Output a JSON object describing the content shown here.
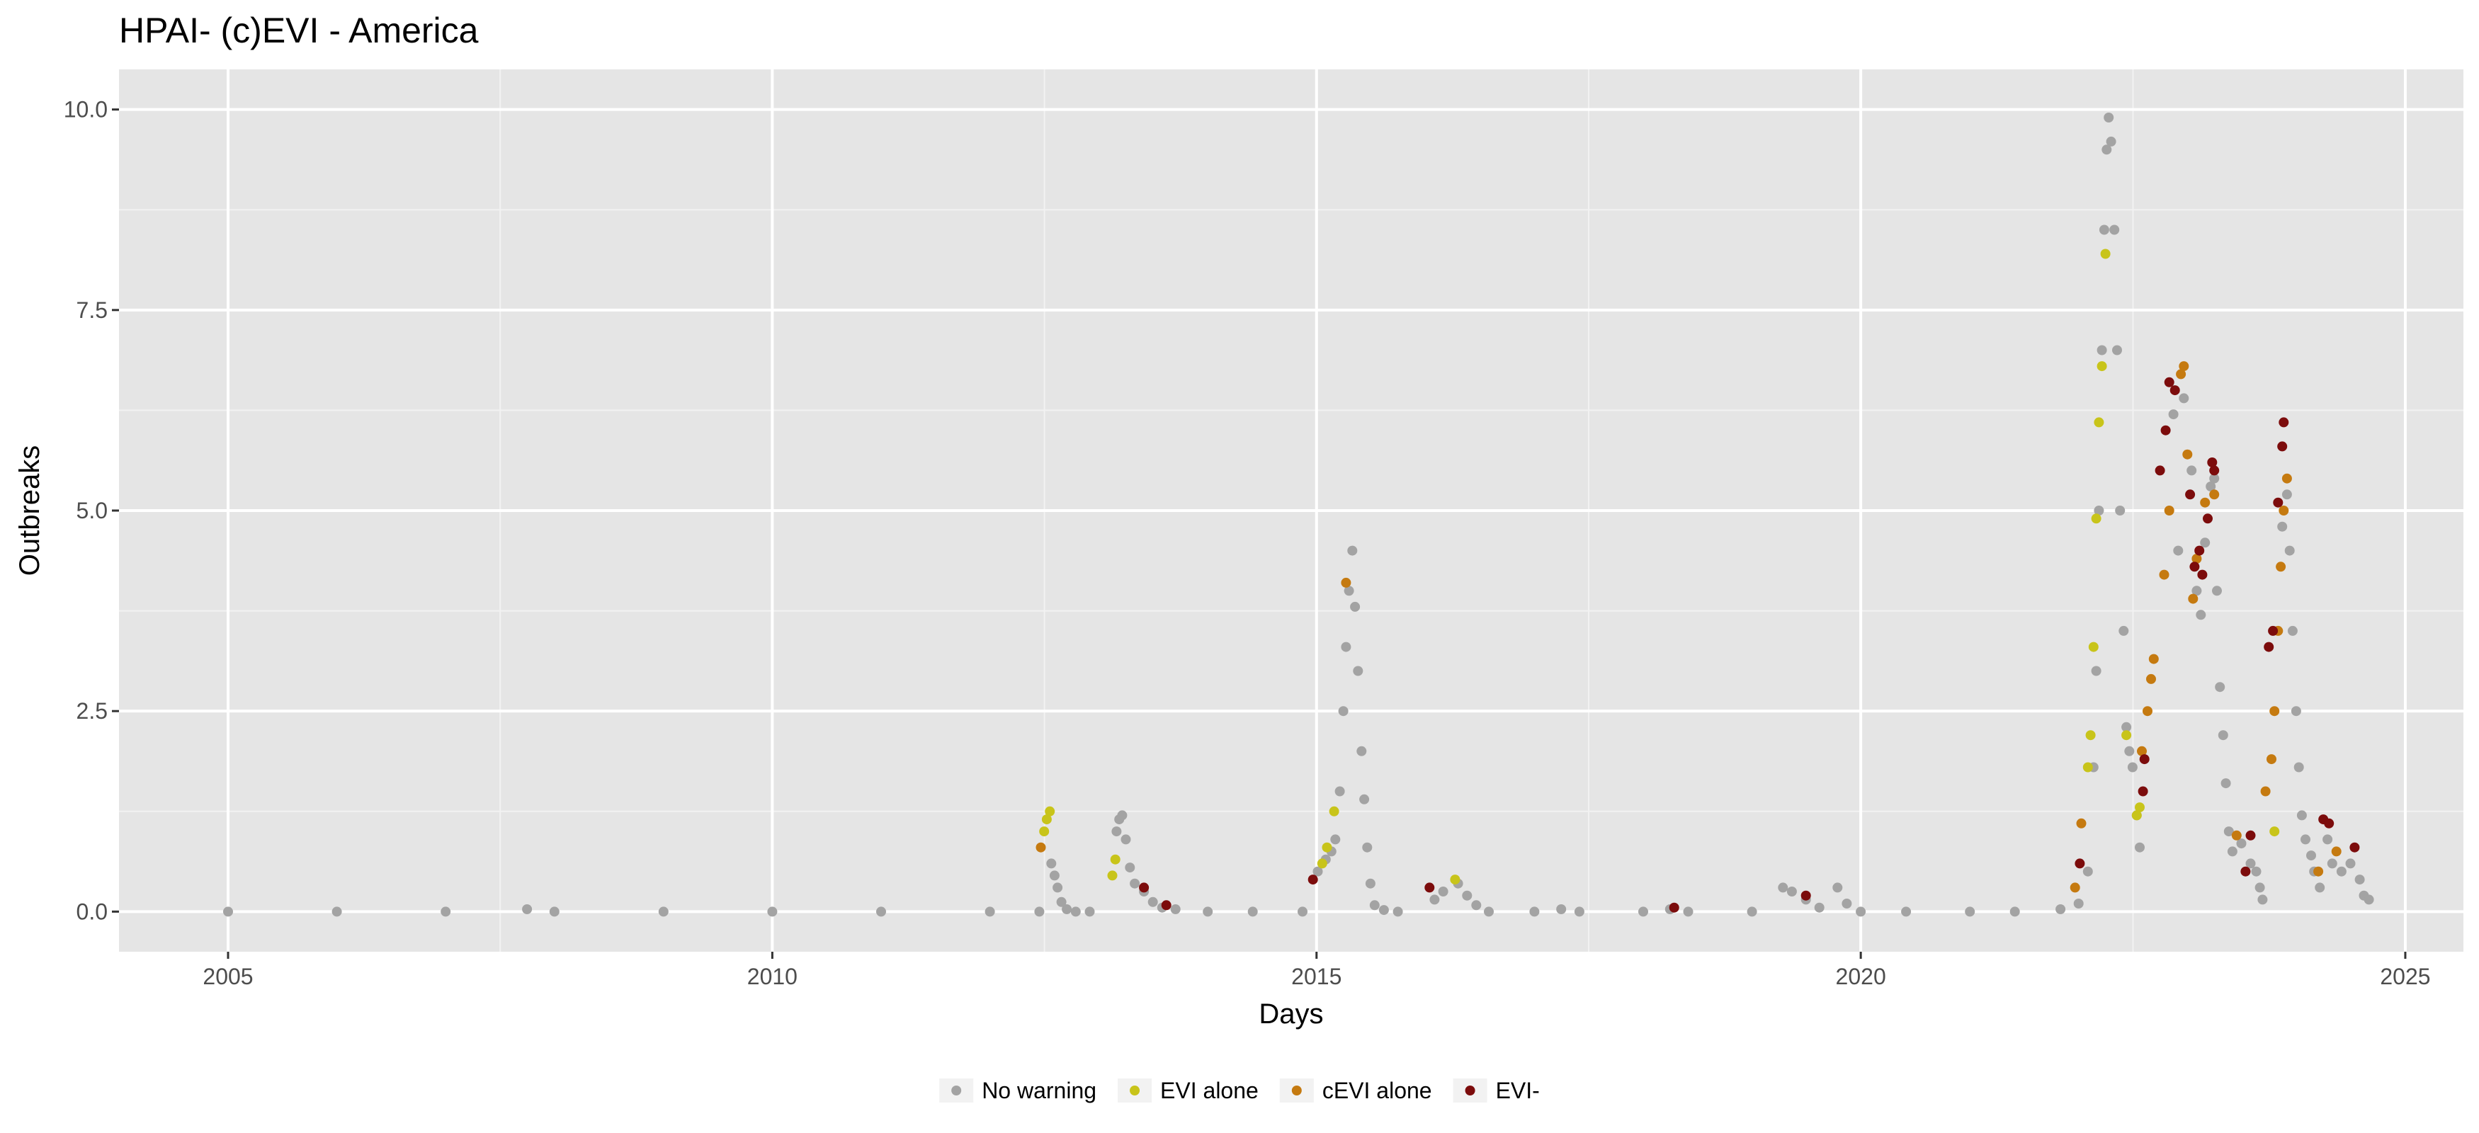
{
  "chart_data": {
    "type": "scatter",
    "title": "HPAI- (c)EVI - America",
    "xlabel": "Days",
    "ylabel": "Outbreaks",
    "x_scale": "date",
    "xlim": [
      "2004-01-01",
      "2025-07-15"
    ],
    "ylim": [
      -0.5,
      10.5
    ],
    "x_ticks": [
      {
        "value": "2005-01-01",
        "label": "2005"
      },
      {
        "value": "2010-01-01",
        "label": "2010"
      },
      {
        "value": "2015-01-01",
        "label": "2015"
      },
      {
        "value": "2020-01-01",
        "label": "2020"
      },
      {
        "value": "2025-01-01",
        "label": "2025"
      }
    ],
    "y_ticks": [
      {
        "value": 0,
        "label": "0.0"
      },
      {
        "value": 2.5,
        "label": "2.5"
      },
      {
        "value": 5,
        "label": "5.0"
      },
      {
        "value": 7.5,
        "label": "7.5"
      },
      {
        "value": 10,
        "label": "10.0"
      }
    ],
    "grid": true,
    "legend_position": "bottom",
    "background": "#e5e5e5",
    "series": [
      {
        "name": "No warning",
        "color": "#a3a3a3",
        "points": [
          [
            "2005-01-01",
            0
          ],
          [
            "2006-01-01",
            0
          ],
          [
            "2007-01-01",
            0
          ],
          [
            "2007-10-01",
            0.03
          ],
          [
            "2008-01-01",
            0
          ],
          [
            "2009-01-01",
            0
          ],
          [
            "2010-01-01",
            0
          ],
          [
            "2011-01-01",
            0
          ],
          [
            "2012-01-01",
            0
          ],
          [
            "2012-06-15",
            0
          ],
          [
            "2012-07-25",
            0.6
          ],
          [
            "2012-08-05",
            0.45
          ],
          [
            "2012-08-15",
            0.3
          ],
          [
            "2012-08-28",
            0.12
          ],
          [
            "2012-09-15",
            0.03
          ],
          [
            "2012-10-15",
            0
          ],
          [
            "2012-12-01",
            0
          ],
          [
            "2013-03-01",
            1.0
          ],
          [
            "2013-03-10",
            1.15
          ],
          [
            "2013-03-20",
            1.2
          ],
          [
            "2013-04-01",
            0.9
          ],
          [
            "2013-04-15",
            0.55
          ],
          [
            "2013-05-01",
            0.35
          ],
          [
            "2013-06-01",
            0.25
          ],
          [
            "2013-07-01",
            0.12
          ],
          [
            "2013-08-01",
            0.05
          ],
          [
            "2013-09-15",
            0.03
          ],
          [
            "2014-01-01",
            0
          ],
          [
            "2014-06-01",
            0
          ],
          [
            "2014-11-15",
            0
          ],
          [
            "2015-01-05",
            0.5
          ],
          [
            "2015-02-01",
            0.65
          ],
          [
            "2015-02-20",
            0.75
          ],
          [
            "2015-03-05",
            0.9
          ],
          [
            "2015-03-20",
            1.5
          ],
          [
            "2015-04-01",
            2.5
          ],
          [
            "2015-04-10",
            3.3
          ],
          [
            "2015-04-20",
            4.0
          ],
          [
            "2015-05-01",
            4.5
          ],
          [
            "2015-05-10",
            3.8
          ],
          [
            "2015-05-20",
            3.0
          ],
          [
            "2015-06-01",
            2.0
          ],
          [
            "2015-06-10",
            1.4
          ],
          [
            "2015-06-20",
            0.8
          ],
          [
            "2015-07-01",
            0.35
          ],
          [
            "2015-07-15",
            0.08
          ],
          [
            "2015-08-15",
            0.02
          ],
          [
            "2015-10-01",
            0
          ],
          [
            "2016-02-01",
            0.15
          ],
          [
            "2016-03-01",
            0.25
          ],
          [
            "2016-04-20",
            0.35
          ],
          [
            "2016-05-20",
            0.2
          ],
          [
            "2016-06-20",
            0.08
          ],
          [
            "2016-08-01",
            0
          ],
          [
            "2017-01-01",
            0
          ],
          [
            "2017-04-01",
            0.03
          ],
          [
            "2017-06-01",
            0
          ],
          [
            "2018-01-01",
            0
          ],
          [
            "2018-04-01",
            0.03
          ],
          [
            "2018-06-01",
            0
          ],
          [
            "2019-01-01",
            0
          ],
          [
            "2019-04-15",
            0.3
          ],
          [
            "2019-05-15",
            0.25
          ],
          [
            "2019-07-01",
            0.15
          ],
          [
            "2019-08-15",
            0.05
          ],
          [
            "2019-10-15",
            0.3
          ],
          [
            "2019-11-15",
            0.1
          ],
          [
            "2020-01-01",
            0
          ],
          [
            "2020-06-01",
            0
          ],
          [
            "2021-01-01",
            0
          ],
          [
            "2021-06-01",
            0
          ],
          [
            "2021-11-01",
            0.03
          ],
          [
            "2022-01-01",
            0.1
          ],
          [
            "2022-02-01",
            0.5
          ],
          [
            "2022-02-20",
            1.8
          ],
          [
            "2022-03-01",
            3.0
          ],
          [
            "2022-03-10",
            5.0
          ],
          [
            "2022-03-20",
            7.0
          ],
          [
            "2022-03-28",
            8.5
          ],
          [
            "2022-04-05",
            9.5
          ],
          [
            "2022-04-12",
            9.9
          ],
          [
            "2022-04-20",
            9.6
          ],
          [
            "2022-05-01",
            8.5
          ],
          [
            "2022-05-10",
            7.0
          ],
          [
            "2022-05-20",
            5.0
          ],
          [
            "2022-06-01",
            3.5
          ],
          [
            "2022-06-10",
            2.3
          ],
          [
            "2022-06-20",
            2.0
          ],
          [
            "2022-07-01",
            1.8
          ],
          [
            "2022-07-15",
            1.2
          ],
          [
            "2022-07-25",
            0.8
          ],
          [
            "2022-11-15",
            6.2
          ],
          [
            "2022-12-01",
            4.5
          ],
          [
            "2022-12-20",
            6.4
          ],
          [
            "2023-01-15",
            5.5
          ],
          [
            "2023-02-01",
            4.0
          ],
          [
            "2023-02-15",
            3.7
          ],
          [
            "2023-03-01",
            4.6
          ],
          [
            "2023-03-20",
            5.3
          ],
          [
            "2023-04-01",
            5.4
          ],
          [
            "2023-04-10",
            4.0
          ],
          [
            "2023-04-20",
            2.8
          ],
          [
            "2023-05-01",
            2.2
          ],
          [
            "2023-05-10",
            1.6
          ],
          [
            "2023-05-20",
            1.0
          ],
          [
            "2023-06-01",
            0.75
          ],
          [
            "2023-07-01",
            0.85
          ],
          [
            "2023-08-01",
            0.6
          ],
          [
            "2023-08-20",
            0.5
          ],
          [
            "2023-09-01",
            0.3
          ],
          [
            "2023-09-10",
            0.15
          ],
          [
            "2023-11-15",
            4.8
          ],
          [
            "2023-12-01",
            5.2
          ],
          [
            "2023-12-10",
            4.5
          ],
          [
            "2023-12-20",
            3.5
          ],
          [
            "2024-01-01",
            2.5
          ],
          [
            "2024-01-10",
            1.8
          ],
          [
            "2024-01-20",
            1.2
          ],
          [
            "2024-02-01",
            0.9
          ],
          [
            "2024-02-20",
            0.7
          ],
          [
            "2024-03-01",
            0.5
          ],
          [
            "2024-03-20",
            0.3
          ],
          [
            "2024-04-15",
            0.9
          ],
          [
            "2024-05-01",
            0.6
          ],
          [
            "2024-06-01",
            0.5
          ],
          [
            "2024-07-01",
            0.6
          ],
          [
            "2024-08-01",
            0.4
          ],
          [
            "2024-08-15",
            0.2
          ],
          [
            "2024-09-01",
            0.15
          ]
        ]
      },
      {
        "name": "EVI alone",
        "color": "#c8c41a",
        "points": [
          [
            "2012-07-01",
            1.0
          ],
          [
            "2012-07-10",
            1.15
          ],
          [
            "2012-07-20",
            1.25
          ],
          [
            "2013-02-15",
            0.45
          ],
          [
            "2013-02-25",
            0.65
          ],
          [
            "2015-01-20",
            0.6
          ],
          [
            "2015-02-05",
            0.8
          ],
          [
            "2015-03-01",
            1.25
          ],
          [
            "2016-04-10",
            0.4
          ],
          [
            "2022-02-01",
            1.8
          ],
          [
            "2022-02-10",
            2.2
          ],
          [
            "2022-02-20",
            3.3
          ],
          [
            "2022-03-01",
            4.9
          ],
          [
            "2022-03-10",
            6.1
          ],
          [
            "2022-03-20",
            6.8
          ],
          [
            "2022-04-01",
            8.2
          ],
          [
            "2022-06-10",
            2.2
          ],
          [
            "2022-07-15",
            1.2
          ],
          [
            "2022-07-25",
            1.3
          ],
          [
            "2023-10-20",
            1.0
          ]
        ]
      },
      {
        "name": "cEVI alone",
        "color": "#c57a10",
        "points": [
          [
            "2012-06-20",
            0.8
          ],
          [
            "2015-04-10",
            4.1
          ],
          [
            "2021-12-20",
            0.3
          ],
          [
            "2022-01-10",
            1.1
          ],
          [
            "2022-08-01",
            2.0
          ],
          [
            "2022-08-20",
            2.5
          ],
          [
            "2022-09-01",
            2.9
          ],
          [
            "2022-09-10",
            3.15
          ],
          [
            "2022-10-15",
            4.2
          ],
          [
            "2022-11-01",
            5.0
          ],
          [
            "2022-12-10",
            6.7
          ],
          [
            "2022-12-20",
            6.8
          ],
          [
            "2023-01-01",
            5.7
          ],
          [
            "2023-01-20",
            3.9
          ],
          [
            "2023-02-01",
            4.4
          ],
          [
            "2023-03-01",
            5.1
          ],
          [
            "2023-04-01",
            5.2
          ],
          [
            "2023-06-15",
            0.95
          ],
          [
            "2023-09-20",
            1.5
          ],
          [
            "2023-10-10",
            1.9
          ],
          [
            "2023-10-20",
            2.5
          ],
          [
            "2023-11-01",
            3.5
          ],
          [
            "2023-11-10",
            4.3
          ],
          [
            "2023-11-20",
            5.0
          ],
          [
            "2023-12-01",
            5.4
          ],
          [
            "2024-03-15",
            0.5
          ],
          [
            "2024-05-15",
            0.75
          ]
        ]
      },
      {
        "name": "EVI-",
        "color": "#7c0c0c",
        "points": [
          [
            "2013-06-01",
            0.3
          ],
          [
            "2013-08-15",
            0.08
          ],
          [
            "2014-12-20",
            0.4
          ],
          [
            "2016-01-15",
            0.3
          ],
          [
            "2018-04-15",
            0.05
          ],
          [
            "2019-07-01",
            0.2
          ],
          [
            "2022-01-05",
            0.6
          ],
          [
            "2022-08-05",
            1.5
          ],
          [
            "2022-08-10",
            1.9
          ],
          [
            "2022-10-01",
            5.5
          ],
          [
            "2022-10-20",
            6.0
          ],
          [
            "2022-11-01",
            6.6
          ],
          [
            "2022-11-20",
            6.5
          ],
          [
            "2023-01-10",
            5.2
          ],
          [
            "2023-01-25",
            4.3
          ],
          [
            "2023-02-10",
            4.5
          ],
          [
            "2023-02-20",
            4.2
          ],
          [
            "2023-03-10",
            4.9
          ],
          [
            "2023-03-25",
            5.6
          ],
          [
            "2023-04-01",
            5.5
          ],
          [
            "2023-07-15",
            0.5
          ],
          [
            "2023-08-01",
            0.95
          ],
          [
            "2023-10-01",
            3.3
          ],
          [
            "2023-10-15",
            3.5
          ],
          [
            "2023-11-01",
            5.1
          ],
          [
            "2023-11-15",
            5.8
          ],
          [
            "2023-11-20",
            6.1
          ],
          [
            "2024-04-01",
            1.15
          ],
          [
            "2024-04-20",
            1.1
          ],
          [
            "2024-07-15",
            0.8
          ]
        ]
      }
    ]
  }
}
